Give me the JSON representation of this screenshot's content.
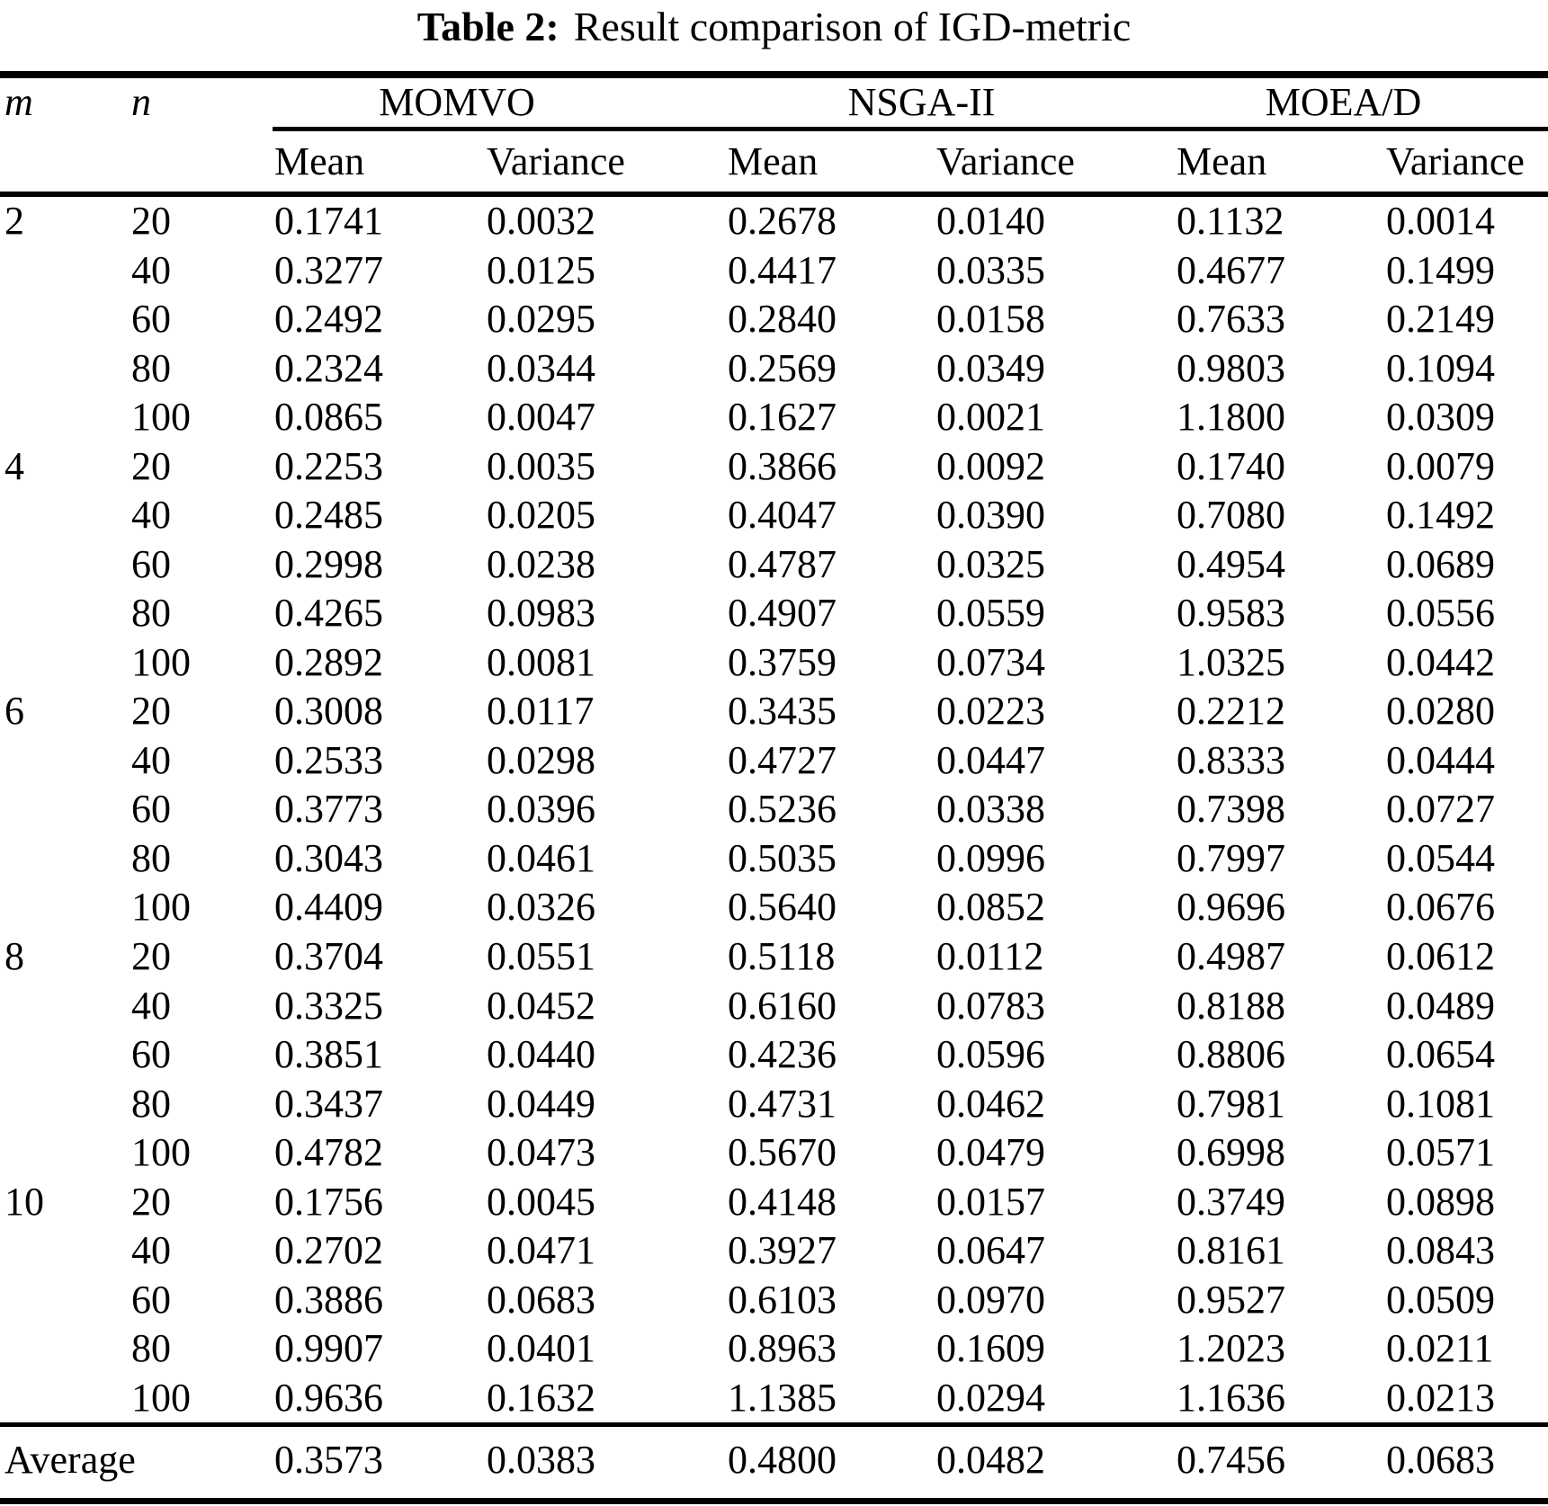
{
  "title": {
    "label": "Table 2:",
    "text": "Result comparison of IGD-metric"
  },
  "table": {
    "row_headers": {
      "m": "m",
      "n": "n"
    },
    "groups": [
      {
        "name": "MOMVO"
      },
      {
        "name": "NSGA-II"
      },
      {
        "name": "MOEA/D"
      }
    ],
    "sub_headers": [
      "Mean",
      "Variance",
      "Mean",
      "Variance",
      "Mean",
      "Variance"
    ],
    "rows": [
      {
        "m": "2",
        "n": "20",
        "values": [
          "0.1741",
          "0.0032",
          "0.2678",
          "0.0140",
          "0.1132",
          "0.0014"
        ]
      },
      {
        "m": "",
        "n": "40",
        "values": [
          "0.3277",
          "0.0125",
          "0.4417",
          "0.0335",
          "0.4677",
          "0.1499"
        ]
      },
      {
        "m": "",
        "n": "60",
        "values": [
          "0.2492",
          "0.0295",
          "0.2840",
          "0.0158",
          "0.7633",
          "0.2149"
        ]
      },
      {
        "m": "",
        "n": "80",
        "values": [
          "0.2324",
          "0.0344",
          "0.2569",
          "0.0349",
          "0.9803",
          "0.1094"
        ]
      },
      {
        "m": "",
        "n": "100",
        "values": [
          "0.0865",
          "0.0047",
          "0.1627",
          "0.0021",
          "1.1800",
          "0.0309"
        ]
      },
      {
        "m": "4",
        "n": "20",
        "values": [
          "0.2253",
          "0.0035",
          "0.3866",
          "0.0092",
          "0.1740",
          "0.0079"
        ]
      },
      {
        "m": "",
        "n": "40",
        "values": [
          "0.2485",
          "0.0205",
          "0.4047",
          "0.0390",
          "0.7080",
          "0.1492"
        ]
      },
      {
        "m": "",
        "n": "60",
        "values": [
          "0.2998",
          "0.0238",
          "0.4787",
          "0.0325",
          "0.4954",
          "0.0689"
        ]
      },
      {
        "m": "",
        "n": "80",
        "values": [
          "0.4265",
          "0.0983",
          "0.4907",
          "0.0559",
          "0.9583",
          "0.0556"
        ]
      },
      {
        "m": "",
        "n": "100",
        "values": [
          "0.2892",
          "0.0081",
          "0.3759",
          "0.0734",
          "1.0325",
          "0.0442"
        ]
      },
      {
        "m": "6",
        "n": "20",
        "values": [
          "0.3008",
          "0.0117",
          "0.3435",
          "0.0223",
          "0.2212",
          "0.0280"
        ]
      },
      {
        "m": "",
        "n": "40",
        "values": [
          "0.2533",
          "0.0298",
          "0.4727",
          "0.0447",
          "0.8333",
          "0.0444"
        ]
      },
      {
        "m": "",
        "n": "60",
        "values": [
          "0.3773",
          "0.0396",
          "0.5236",
          "0.0338",
          "0.7398",
          "0.0727"
        ]
      },
      {
        "m": "",
        "n": "80",
        "values": [
          "0.3043",
          "0.0461",
          "0.5035",
          "0.0996",
          "0.7997",
          "0.0544"
        ]
      },
      {
        "m": "",
        "n": "100",
        "values": [
          "0.4409",
          "0.0326",
          "0.5640",
          "0.0852",
          "0.9696",
          "0.0676"
        ]
      },
      {
        "m": "8",
        "n": "20",
        "values": [
          "0.3704",
          "0.0551",
          "0.5118",
          "0.0112",
          "0.4987",
          "0.0612"
        ]
      },
      {
        "m": "",
        "n": "40",
        "values": [
          "0.3325",
          "0.0452",
          "0.6160",
          "0.0783",
          "0.8188",
          "0.0489"
        ]
      },
      {
        "m": "",
        "n": "60",
        "values": [
          "0.3851",
          "0.0440",
          "0.4236",
          "0.0596",
          "0.8806",
          "0.0654"
        ]
      },
      {
        "m": "",
        "n": "80",
        "values": [
          "0.3437",
          "0.0449",
          "0.4731",
          "0.0462",
          "0.7981",
          "0.1081"
        ]
      },
      {
        "m": "",
        "n": "100",
        "values": [
          "0.4782",
          "0.0473",
          "0.5670",
          "0.0479",
          "0.6998",
          "0.0571"
        ]
      },
      {
        "m": "10",
        "n": "20",
        "values": [
          "0.1756",
          "0.0045",
          "0.4148",
          "0.0157",
          "0.3749",
          "0.0898"
        ]
      },
      {
        "m": "",
        "n": "40",
        "values": [
          "0.2702",
          "0.0471",
          "0.3927",
          "0.0647",
          "0.8161",
          "0.0843"
        ]
      },
      {
        "m": "",
        "n": "60",
        "values": [
          "0.3886",
          "0.0683",
          "0.6103",
          "0.0970",
          "0.9527",
          "0.0509"
        ]
      },
      {
        "m": "",
        "n": "80",
        "values": [
          "0.9907",
          "0.0401",
          "0.8963",
          "0.1609",
          "1.2023",
          "0.0211"
        ]
      },
      {
        "m": "",
        "n": "100",
        "values": [
          "0.9636",
          "0.1632",
          "1.1385",
          "0.0294",
          "1.1636",
          "0.0213"
        ]
      }
    ],
    "average": {
      "label": "Average",
      "values": [
        "0.3573",
        "0.0383",
        "0.4800",
        "0.0482",
        "0.7456",
        "0.0683"
      ]
    }
  }
}
